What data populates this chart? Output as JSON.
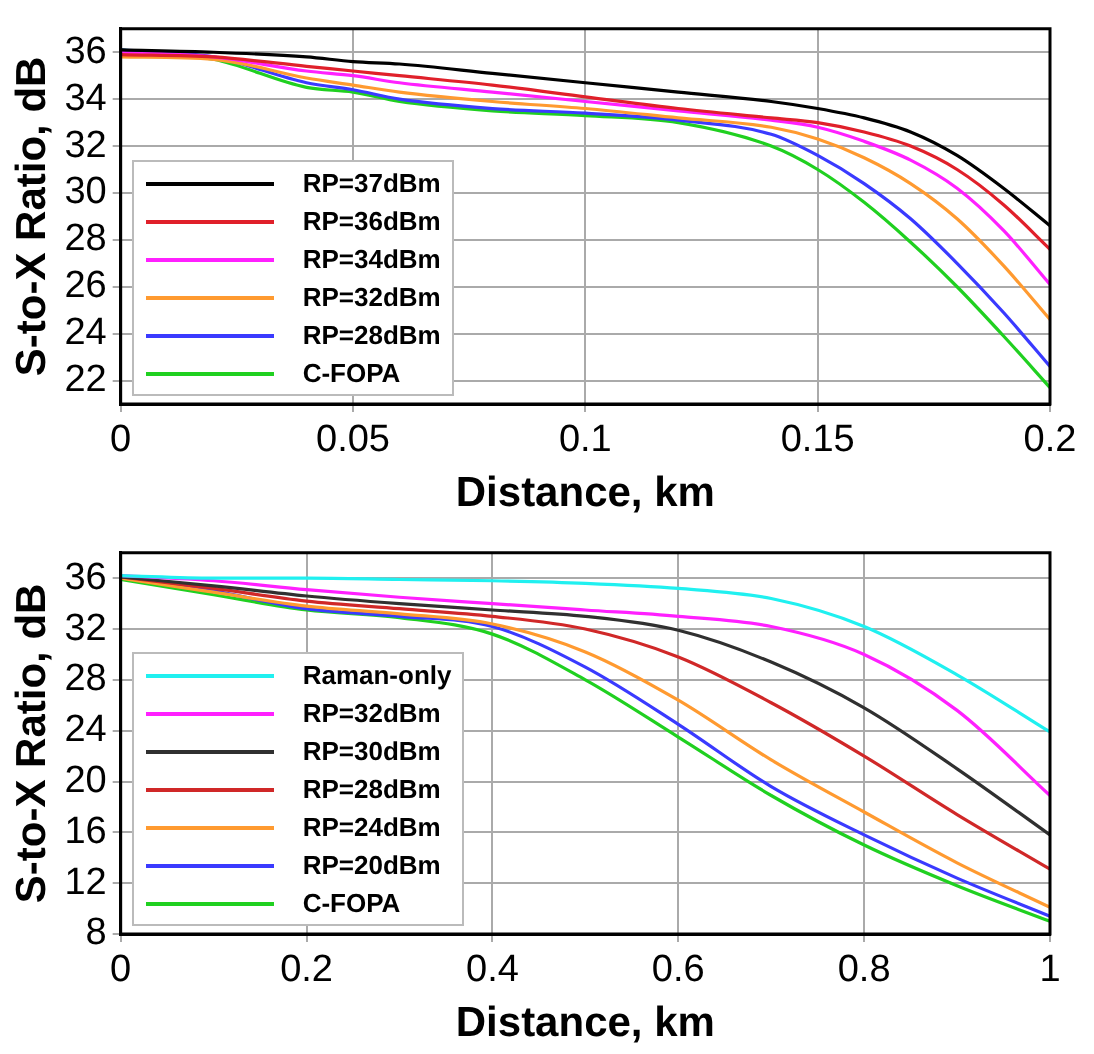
{
  "chart_data": [
    {
      "type": "line",
      "xlabel": "Distance, km",
      "ylabel": "S-to-X Ratio, dB",
      "xlim": [
        0,
        0.2
      ],
      "xticks": [
        0,
        0.05,
        0.1,
        0.15,
        0.2
      ],
      "ylim": [
        21,
        37
      ],
      "yticks": [
        22,
        24,
        26,
        28,
        30,
        32,
        34,
        36
      ],
      "grid": true,
      "legend": "bottom left",
      "marker": "none",
      "line_style": "solid",
      "x": [
        0,
        0.02,
        0.04,
        0.05,
        0.06,
        0.08,
        0.1,
        0.12,
        0.14,
        0.15,
        0.16,
        0.17,
        0.18,
        0.19,
        0.2
      ],
      "series": [
        {
          "name": "RP=37dBm",
          "color": "#000000",
          "values": [
            36.1,
            36.0,
            35.8,
            35.6,
            35.5,
            35.1,
            34.7,
            34.3,
            33.9,
            33.6,
            33.2,
            32.6,
            31.6,
            30.2,
            28.6
          ]
        },
        {
          "name": "RP=36dBm",
          "color": "#e0202a",
          "values": [
            35.9,
            35.8,
            35.4,
            35.2,
            35.0,
            34.6,
            34.1,
            33.6,
            33.2,
            33.0,
            32.6,
            32.0,
            31.0,
            29.5,
            27.6
          ]
        },
        {
          "name": "RP=34dBm",
          "color": "#ff20ff",
          "values": [
            36.0,
            35.8,
            35.2,
            35.0,
            34.7,
            34.3,
            33.9,
            33.5,
            33.1,
            32.8,
            32.2,
            31.4,
            30.2,
            28.4,
            26.1
          ]
        },
        {
          "name": "RP=32dBm",
          "color": "#ff9a30",
          "values": [
            35.8,
            35.7,
            34.9,
            34.6,
            34.3,
            33.9,
            33.6,
            33.2,
            32.8,
            32.3,
            31.5,
            30.4,
            28.9,
            26.9,
            24.6
          ]
        },
        {
          "name": "RP=28dBm",
          "color": "#3a3aff",
          "values": [
            36.1,
            35.8,
            34.7,
            34.4,
            34.0,
            33.6,
            33.4,
            33.1,
            32.5,
            31.6,
            30.4,
            28.9,
            27.0,
            24.9,
            22.6
          ]
        },
        {
          "name": "C-FOPA",
          "color": "#20d020",
          "values": [
            36.1,
            35.7,
            34.5,
            34.3,
            33.9,
            33.5,
            33.3,
            33.0,
            32.0,
            31.0,
            29.6,
            27.9,
            26.0,
            23.9,
            21.7
          ]
        }
      ]
    },
    {
      "type": "line",
      "xlabel": "Distance, km",
      "ylabel": "S-to-X Ratio, dB",
      "xlim": [
        0,
        1
      ],
      "xticks": [
        0,
        0.2,
        0.4,
        0.6,
        0.8,
        1
      ],
      "ylim": [
        8,
        38
      ],
      "yticks": [
        8,
        12,
        16,
        20,
        24,
        28,
        32,
        36
      ],
      "grid": true,
      "legend": "bottom left",
      "marker": "none",
      "line_style": "solid",
      "x": [
        0,
        0.1,
        0.2,
        0.3,
        0.4,
        0.5,
        0.6,
        0.7,
        0.8,
        0.9,
        1
      ],
      "series": [
        {
          "name": "Raman-only",
          "color": "#20f0f0",
          "values": [
            36.2,
            36.0,
            36.0,
            35.9,
            35.8,
            35.6,
            35.2,
            34.4,
            32.2,
            28.4,
            23.9
          ]
        },
        {
          "name": "RP=32dBm",
          "color": "#ff20ff",
          "values": [
            36.2,
            35.8,
            35.1,
            34.5,
            34.0,
            33.5,
            33.0,
            32.2,
            30.0,
            25.6,
            18.9
          ]
        },
        {
          "name": "RP=30dBm",
          "color": "#303030",
          "values": [
            36.1,
            35.4,
            34.6,
            34.0,
            33.5,
            33.0,
            31.9,
            29.4,
            25.8,
            21.0,
            15.8
          ]
        },
        {
          "name": "RP=28dBm",
          "color": "#d02828",
          "values": [
            36.1,
            35.2,
            34.2,
            33.6,
            33.0,
            32.0,
            29.8,
            26.2,
            22.0,
            17.4,
            13.1
          ]
        },
        {
          "name": "RP=24dBm",
          "color": "#ff9a30",
          "values": [
            36.0,
            34.9,
            33.8,
            33.2,
            32.4,
            30.2,
            26.4,
            21.7,
            17.6,
            13.6,
            10.1
          ]
        },
        {
          "name": "RP=20dBm",
          "color": "#3a3aff",
          "values": [
            36.2,
            35.0,
            33.6,
            33.0,
            32.2,
            29.0,
            24.5,
            19.6,
            15.8,
            12.4,
            9.4
          ]
        },
        {
          "name": "C-FOPA",
          "color": "#20d020",
          "values": [
            35.9,
            34.7,
            33.5,
            32.9,
            31.6,
            28.0,
            23.5,
            18.9,
            15.0,
            11.8,
            9.0
          ]
        }
      ]
    }
  ]
}
